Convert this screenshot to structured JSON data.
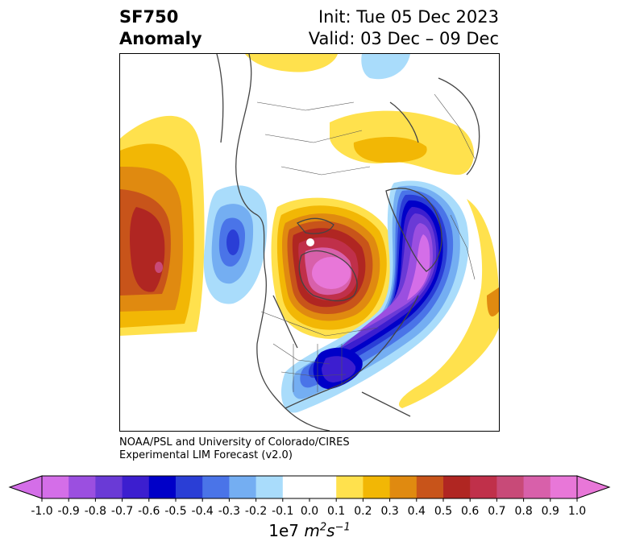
{
  "header": {
    "title_line1": "SF750",
    "title_line2": "Anomaly",
    "init_text": "Init: Tue 05 Dec 2023",
    "valid_text": "Valid: 03 Dec – 09 Dec"
  },
  "credit": {
    "line1": "NOAA/PSL and University of Colorado/CIRES",
    "line2": "Experimental LIM Forecast (v2.0)"
  },
  "colorbar": {
    "ticks": [
      "-1.0",
      "-0.9",
      "-0.8",
      "-0.7",
      "-0.6",
      "-0.5",
      "-0.4",
      "-0.3",
      "-0.2",
      "-0.1",
      "0.0",
      "0.1",
      "0.2",
      "0.3",
      "0.4",
      "0.5",
      "0.6",
      "0.7",
      "0.8",
      "0.9",
      "1.0"
    ],
    "colors": [
      "#d46ee8",
      "#9b4fe0",
      "#6a3ad6",
      "#3c1ecf",
      "#0000c8",
      "#2a3ed6",
      "#4a74e8",
      "#74aef2",
      "#a9dcfb",
      "#ffffff",
      "#ffffff",
      "#ffe14d",
      "#f2b705",
      "#e08a10",
      "#c8541a",
      "#b02622",
      "#c0304a",
      "#c84a78",
      "#d860aa",
      "#e877d8"
    ],
    "label_base": "1e7",
    "label_m": "m",
    "label_m_exp": "2",
    "label_s": "s",
    "label_s_exp": "−1",
    "extend": "both"
  },
  "map": {
    "projection": "north-polar-stereographic",
    "variable": "750 hPa streamfunction anomaly",
    "positive_color": "#b02622",
    "negative_color": "#0000c8"
  }
}
